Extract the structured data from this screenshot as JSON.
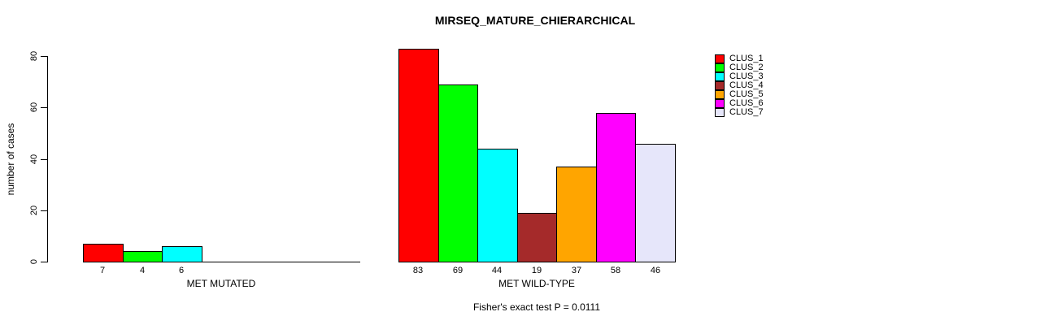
{
  "title": "MIRSEQ_MATURE_CHIERARCHICAL",
  "footer": "Fisher's exact test P = 0.0111",
  "chart_data": {
    "type": "bar",
    "title": "MIRSEQ_MATURE_CHIERARCHICAL",
    "xlabel": "",
    "ylabel": "number of cases",
    "ylim": [
      0,
      80
    ],
    "yticks": [
      0,
      20,
      40,
      60,
      80
    ],
    "grid": false,
    "legend_position": "right",
    "legend": [
      "CLUS_1",
      "CLUS_2",
      "CLUS_3",
      "CLUS_4",
      "CLUS_5",
      "CLUS_6",
      "CLUS_7"
    ],
    "series_colors": [
      "#FF0000",
      "#00FF00",
      "#00FFFF",
      "#A52A2A",
      "#FFA500",
      "#FF00FF",
      "#E6E6FA"
    ],
    "groups": [
      {
        "label": "MET MUTATED",
        "values": [
          7,
          4,
          6,
          0,
          0,
          0,
          0
        ],
        "bar_labels": [
          "7",
          "4",
          "6",
          "",
          "",
          "",
          ""
        ]
      },
      {
        "label": "MET WILD-TYPE",
        "values": [
          83,
          69,
          44,
          19,
          37,
          58,
          46
        ],
        "bar_labels": [
          "83",
          "69",
          "44",
          "19",
          "37",
          "58",
          "46"
        ]
      }
    ],
    "annotation": "Fisher's exact test P = 0.0111"
  }
}
